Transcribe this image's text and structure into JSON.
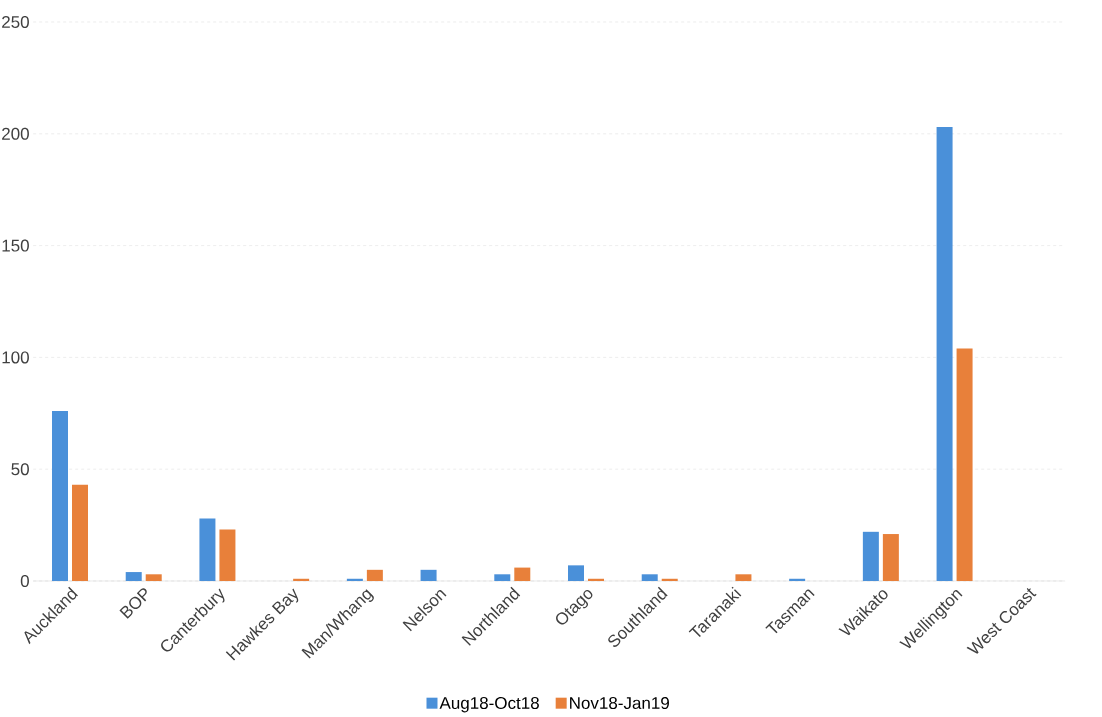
{
  "chart_data": {
    "type": "bar",
    "categories": [
      "Auckland",
      "BOP",
      "Canterbury",
      "Hawkes Bay",
      "Man/Whang",
      "Nelson",
      "Northland",
      "Otago",
      "Southland",
      "Taranaki",
      "Tasman",
      "Waikato",
      "Wellington",
      "West Coast"
    ],
    "series": [
      {
        "name": "Aug18-Oct18",
        "color": "#4a90d9",
        "values": [
          76,
          4,
          28,
          0,
          1,
          5,
          3,
          7,
          3,
          0,
          1,
          22,
          203,
          0
        ]
      },
      {
        "name": "Nov18-Jan19",
        "color": "#e8803a",
        "values": [
          43,
          3,
          23,
          1,
          5,
          0,
          6,
          1,
          1,
          3,
          0,
          21,
          104,
          0
        ]
      }
    ],
    "ylim": [
      0,
      250
    ],
    "yticks": [
      0,
      50,
      100,
      150,
      200,
      250
    ],
    "grid": "y",
    "legend": "bottom"
  }
}
